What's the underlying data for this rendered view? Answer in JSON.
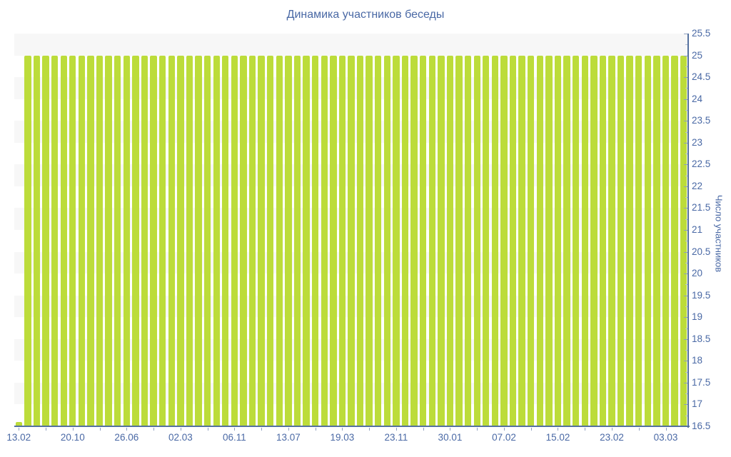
{
  "chart_data": {
    "type": "bar",
    "title": "Динамика участников беседы",
    "xlabel": "",
    "ylabel": "Число участников",
    "ylim": [
      16.5,
      25.5
    ],
    "y_tick_step": 0.5,
    "y_minor_tick_step": 0.25,
    "grid": "alternating-horizontal-bands",
    "legend": false,
    "n_bars": 75,
    "y_tick_labels": [
      "25.5",
      "25",
      "24.5",
      "24",
      "23.5",
      "23",
      "22.5",
      "22",
      "21.5",
      "21",
      "20.5",
      "20",
      "19.5",
      "19",
      "18.5",
      "18",
      "17.5",
      "17",
      "16.5"
    ],
    "x_tick_labels": [
      "13.02",
      "20.10",
      "26.06",
      "02.03",
      "06.11",
      "13.07",
      "19.03",
      "23.11",
      "30.01",
      "07.02",
      "15.02",
      "23.02",
      "03.03"
    ],
    "x_label_bar_indices": [
      0,
      6,
      12,
      18,
      24,
      30,
      36,
      42,
      48,
      54,
      60,
      66,
      72
    ],
    "x_tick_every_bars": 3,
    "values": [
      16.6,
      25,
      25,
      25,
      25,
      25,
      25,
      25,
      25,
      25,
      25,
      25,
      25,
      25,
      25,
      25,
      25,
      25,
      25,
      25,
      25,
      25,
      25,
      25,
      25,
      25,
      25,
      25,
      25,
      25,
      25,
      25,
      25,
      25,
      25,
      25,
      25,
      25,
      25,
      25,
      25,
      25,
      25,
      25,
      25,
      25,
      25,
      25,
      25,
      25,
      25,
      25,
      25,
      25,
      25,
      25,
      25,
      25,
      25,
      25,
      25,
      25,
      25,
      25,
      25,
      25,
      25,
      25,
      25,
      25,
      25,
      25,
      25,
      25,
      25
    ],
    "bar_color": "#bcdc3a",
    "band_color": "#f7f7f7",
    "background_color": "#ffffff",
    "axis_line_color": "#55719f",
    "label_color": "#4a69a5",
    "title_color": "#4a69a5",
    "major_tick_color": "#8fa0c0",
    "minor_tick_color": "#b6c1d6"
  }
}
